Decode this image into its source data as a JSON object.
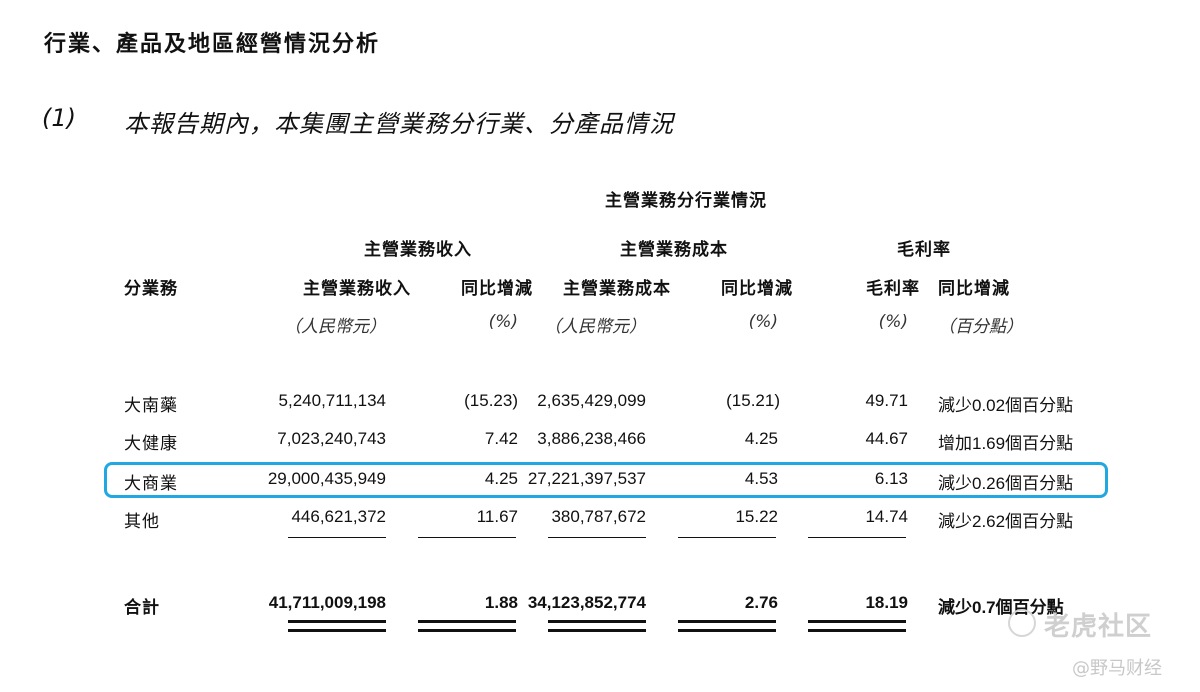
{
  "title": "行業、產品及地區經營情況分析",
  "subsection": {
    "number": "(1)",
    "title": "本報告期內，本集團主營業務分行業、分產品情況"
  },
  "table": {
    "super_header": "主營業務分行業情況",
    "group_headers": [
      "主營業務收入",
      "主營業務成本",
      "毛利率"
    ],
    "column_headers": {
      "segment": "分業務",
      "revenue": "主營業務收入",
      "revenue_yoy": "同比增減",
      "cost": "主營業務成本",
      "cost_yoy": "同比增減",
      "margin": "毛利率",
      "margin_yoy": "同比增減"
    },
    "units": {
      "revenue": "（人民幣元）",
      "revenue_yoy": "(%)",
      "cost": "（人民幣元）",
      "cost_yoy": "(%)",
      "margin": "(%)",
      "margin_yoy": "（百分點）"
    },
    "rows": [
      {
        "segment": "大南藥",
        "revenue": "5,240,711,134",
        "revenue_yoy": "(15.23)",
        "cost": "2,635,429,099",
        "cost_yoy": "(15.21)",
        "margin": "49.71",
        "margin_yoy": "減少0.02個百分點"
      },
      {
        "segment": "大健康",
        "revenue": "7,023,240,743",
        "revenue_yoy": "7.42",
        "cost": "3,886,238,466",
        "cost_yoy": "4.25",
        "margin": "44.67",
        "margin_yoy": "增加1.69個百分點"
      },
      {
        "segment": "大商業",
        "revenue": "29,000,435,949",
        "revenue_yoy": "4.25",
        "cost": "27,221,397,537",
        "cost_yoy": "4.53",
        "margin": "6.13",
        "margin_yoy": "減少0.26個百分點"
      },
      {
        "segment": "其他",
        "revenue": "446,621,372",
        "revenue_yoy": "11.67",
        "cost": "380,787,672",
        "cost_yoy": "15.22",
        "margin": "14.74",
        "margin_yoy": "減少2.62個百分點"
      }
    ],
    "total": {
      "segment": "合計",
      "revenue": "41,711,009,198",
      "revenue_yoy": "1.88",
      "cost": "34,123,852,774",
      "cost_yoy": "2.76",
      "margin": "18.19",
      "margin_yoy": "減少0.7個百分點"
    }
  },
  "highlight_color": "#22a8e0",
  "watermarks": {
    "tiger": "老虎社区",
    "author": "@野马财经"
  }
}
